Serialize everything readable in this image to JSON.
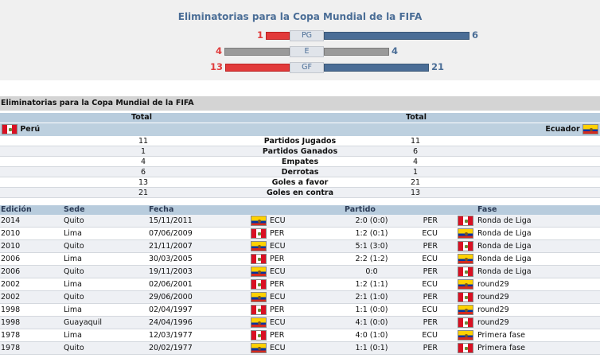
{
  "summary": {
    "title": "Eliminatorias para la Copa Mundial de la FIFA",
    "rows": [
      {
        "label": "PG",
        "left": "1",
        "right": "6",
        "left_frac": 0.14,
        "right_frac": 0.86
      },
      {
        "label": "E",
        "left": "4",
        "right": "4",
        "left_frac": 0.5,
        "right_frac": 0.5
      },
      {
        "label": "GF",
        "left": "13",
        "right": "21",
        "left_frac": 0.38,
        "right_frac": 0.62
      }
    ],
    "colors": {
      "left": "#e23a3a",
      "right": "#4a6d96",
      "equal": "#9a9a9a"
    }
  },
  "section_title": "Eliminatorias para la Copa Mundial de la FIFA",
  "stats": {
    "head_left": "Total",
    "head_right": "Total",
    "team_left": "Perú",
    "team_right": "Ecuador",
    "rows": [
      {
        "left": "11",
        "label": "Partidos Jugados",
        "right": "11"
      },
      {
        "left": "1",
        "label": "Partidos Ganados",
        "right": "6"
      },
      {
        "left": "4",
        "label": "Empates",
        "right": "4"
      },
      {
        "left": "6",
        "label": "Derrotas",
        "right": "1"
      },
      {
        "left": "13",
        "label": "Goles a favor",
        "right": "21"
      },
      {
        "left": "21",
        "label": "Goles en contra",
        "right": "13"
      }
    ]
  },
  "matches": {
    "headers": {
      "edicion": "Edición",
      "sede": "Sede",
      "fecha": "Fecha",
      "partido": "Partido",
      "fase": "Fase"
    },
    "rows": [
      {
        "edicion": "2014",
        "sede": "Quito",
        "fecha": "15/11/2011",
        "home": "ECU",
        "home_flag": "ecu",
        "score": "2:0 (0:0)",
        "away": "PER",
        "away_flag": "peru",
        "fase": "Ronda de Liga"
      },
      {
        "edicion": "2010",
        "sede": "Lima",
        "fecha": "07/06/2009",
        "home": "PER",
        "home_flag": "peru",
        "score": "1:2 (0:1)",
        "away": "ECU",
        "away_flag": "ecu",
        "fase": "Ronda de Liga"
      },
      {
        "edicion": "2010",
        "sede": "Quito",
        "fecha": "21/11/2007",
        "home": "ECU",
        "home_flag": "ecu",
        "score": "5:1 (3:0)",
        "away": "PER",
        "away_flag": "peru",
        "fase": "Ronda de Liga"
      },
      {
        "edicion": "2006",
        "sede": "Lima",
        "fecha": "30/03/2005",
        "home": "PER",
        "home_flag": "peru",
        "score": "2:2 (1:2)",
        "away": "ECU",
        "away_flag": "ecu",
        "fase": "Ronda de Liga"
      },
      {
        "edicion": "2006",
        "sede": "Quito",
        "fecha": "19/11/2003",
        "home": "ECU",
        "home_flag": "ecu",
        "score": "0:0",
        "away": "PER",
        "away_flag": "peru",
        "fase": "Ronda de Liga"
      },
      {
        "edicion": "2002",
        "sede": "Lima",
        "fecha": "02/06/2001",
        "home": "PER",
        "home_flag": "peru",
        "score": "1:2 (1:1)",
        "away": "ECU",
        "away_flag": "ecu",
        "fase": "round29"
      },
      {
        "edicion": "2002",
        "sede": "Quito",
        "fecha": "29/06/2000",
        "home": "ECU",
        "home_flag": "ecu",
        "score": "2:1 (1:0)",
        "away": "PER",
        "away_flag": "peru",
        "fase": "round29"
      },
      {
        "edicion": "1998",
        "sede": "Lima",
        "fecha": "02/04/1997",
        "home": "PER",
        "home_flag": "peru",
        "score": "1:1 (0:0)",
        "away": "ECU",
        "away_flag": "ecu",
        "fase": "round29"
      },
      {
        "edicion": "1998",
        "sede": "Guayaquil",
        "fecha": "24/04/1996",
        "home": "ECU",
        "home_flag": "ecu",
        "score": "4:1 (0:0)",
        "away": "PER",
        "away_flag": "peru",
        "fase": "round29"
      },
      {
        "edicion": "1978",
        "sede": "Lima",
        "fecha": "12/03/1977",
        "home": "PER",
        "home_flag": "peru",
        "score": "4:0 (1:0)",
        "away": "ECU",
        "away_flag": "ecu",
        "fase": "Primera fase"
      },
      {
        "edicion": "1978",
        "sede": "Quito",
        "fecha": "20/02/1977",
        "home": "ECU",
        "home_flag": "ecu",
        "score": "1:1 (0:1)",
        "away": "PER",
        "away_flag": "peru",
        "fase": "Primera fase"
      }
    ]
  }
}
